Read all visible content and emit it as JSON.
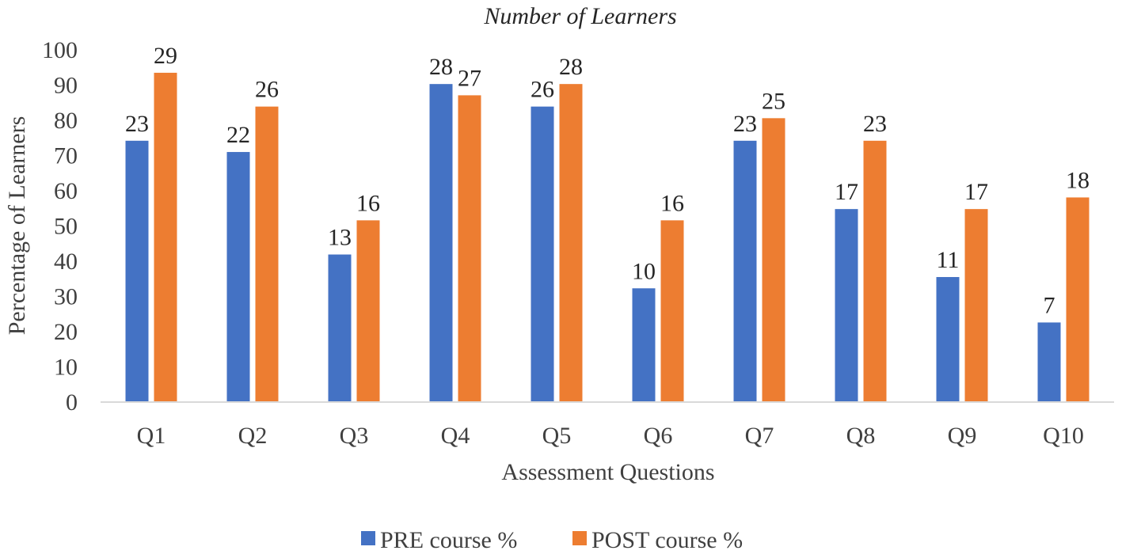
{
  "chart_data": {
    "type": "bar",
    "title": "Number of Learners",
    "xlabel": "Assessment Questions",
    "ylabel": "Percentage of Learners",
    "ylim": [
      0,
      100
    ],
    "yticks": [
      0,
      10,
      20,
      30,
      40,
      50,
      60,
      70,
      80,
      90,
      100
    ],
    "grid": false,
    "legend_position": "bottom",
    "categories": [
      "Q1",
      "Q2",
      "Q3",
      "Q4",
      "Q5",
      "Q6",
      "Q7",
      "Q8",
      "Q9",
      "Q10"
    ],
    "series": [
      {
        "name": "PRE course %",
        "color": "#4472C4",
        "values": [
          74.2,
          71.0,
          41.9,
          90.3,
          83.9,
          32.3,
          74.2,
          54.8,
          35.5,
          22.6
        ],
        "labels": [
          "23",
          "22",
          "13",
          "28",
          "26",
          "10",
          "23",
          "17",
          "11",
          "7"
        ]
      },
      {
        "name": "POST course %",
        "color": "#ED7D31",
        "values": [
          93.5,
          83.9,
          51.6,
          87.1,
          90.3,
          51.6,
          80.6,
          74.2,
          54.8,
          58.1
        ],
        "labels": [
          "29",
          "26",
          "16",
          "27",
          "28",
          "16",
          "25",
          "23",
          "17",
          "18"
        ]
      }
    ]
  }
}
